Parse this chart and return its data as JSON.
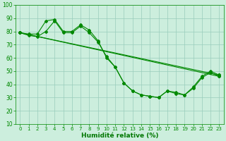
{
  "background_color": "#cceedd",
  "grid_color": "#99ccbb",
  "line_color": "#008800",
  "xlabel": "Humidité relative (%)",
  "xlabel_color": "#007700",
  "tick_color": "#008800",
  "xlim": [
    -0.5,
    23.5
  ],
  "ylim": [
    10,
    100
  ],
  "yticks": [
    10,
    20,
    30,
    40,
    50,
    60,
    70,
    80,
    90,
    100
  ],
  "xticks": [
    0,
    1,
    2,
    3,
    4,
    5,
    6,
    7,
    8,
    9,
    10,
    11,
    12,
    13,
    14,
    15,
    16,
    17,
    18,
    19,
    20,
    21,
    22,
    23
  ],
  "line1_x": [
    0,
    1,
    2,
    3,
    4,
    5,
    6,
    7,
    8,
    9,
    10,
    11,
    12,
    13,
    14,
    15,
    16,
    17,
    18,
    19,
    20,
    21,
    22,
    23
  ],
  "line1_y": [
    79,
    78,
    78,
    88,
    89,
    80,
    80,
    85,
    81,
    73,
    60,
    53,
    41,
    35,
    32,
    31,
    30,
    35,
    33,
    32,
    38,
    46,
    50,
    47
  ],
  "line2_x": [
    0,
    1,
    2,
    3,
    4,
    5,
    6,
    7,
    8,
    9,
    10,
    11,
    12,
    13,
    14,
    15,
    16,
    17,
    18,
    19,
    20,
    21,
    22,
    23
  ],
  "line2_y": [
    79,
    77,
    76,
    80,
    88,
    79,
    79,
    84,
    79,
    72,
    61,
    53,
    41,
    35,
    32,
    31,
    30,
    35,
    34,
    32,
    37,
    45,
    49,
    46
  ],
  "line3_x": [
    0,
    23
  ],
  "line3_y": [
    79,
    47
  ],
  "line4_x": [
    0,
    23
  ],
  "line4_y": [
    79,
    46
  ],
  "marker_style": "D",
  "marker_size": 2,
  "linewidth": 0.8,
  "trend_linewidth": 0.8
}
